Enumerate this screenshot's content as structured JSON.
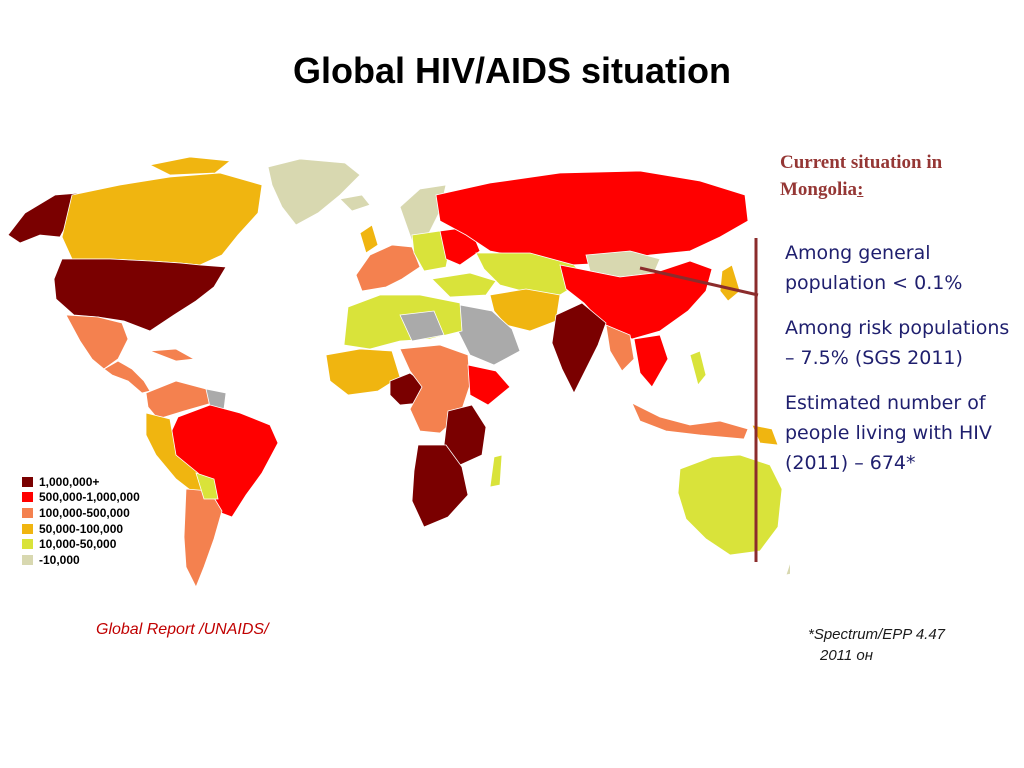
{
  "title": "Global HIV/AIDS situation",
  "colors": {
    "title": "#000000",
    "heading": "#953735",
    "facts": "#1f1f6e",
    "source": "#c00000",
    "footnote": "#1a1a1a",
    "ocean": "#ffffff",
    "no_data": "#aaaaaa",
    "connector": "#8b2c2c"
  },
  "map": {
    "legend": [
      {
        "label": "1,000,000+",
        "color": "#7a0000"
      },
      {
        "label": "500,000-1,000,000",
        "color": "#ff0000"
      },
      {
        "label": "100,000-500,000",
        "color": "#f4814f"
      },
      {
        "label": "50,000-100,000",
        "color": "#f0b510"
      },
      {
        "label": "10,000-50,000",
        "color": "#d9e33a"
      },
      {
        "label": "-10,000",
        "color": "#d8d8b0"
      }
    ],
    "source": "Global Report  /UNAIDS/"
  },
  "side": {
    "heading_main": "Current situation in Mongolia",
    "heading_colon": ":",
    "facts": [
      "Among general population < 0.1%",
      "Among risk populations  – 7.5% (SGS 2011)",
      "Estimated number of  people living with HIV (2011) – 674*"
    ],
    "footnote_line1": "*Spectrum/EPP 4.47",
    "footnote_line2": "2011 он"
  }
}
